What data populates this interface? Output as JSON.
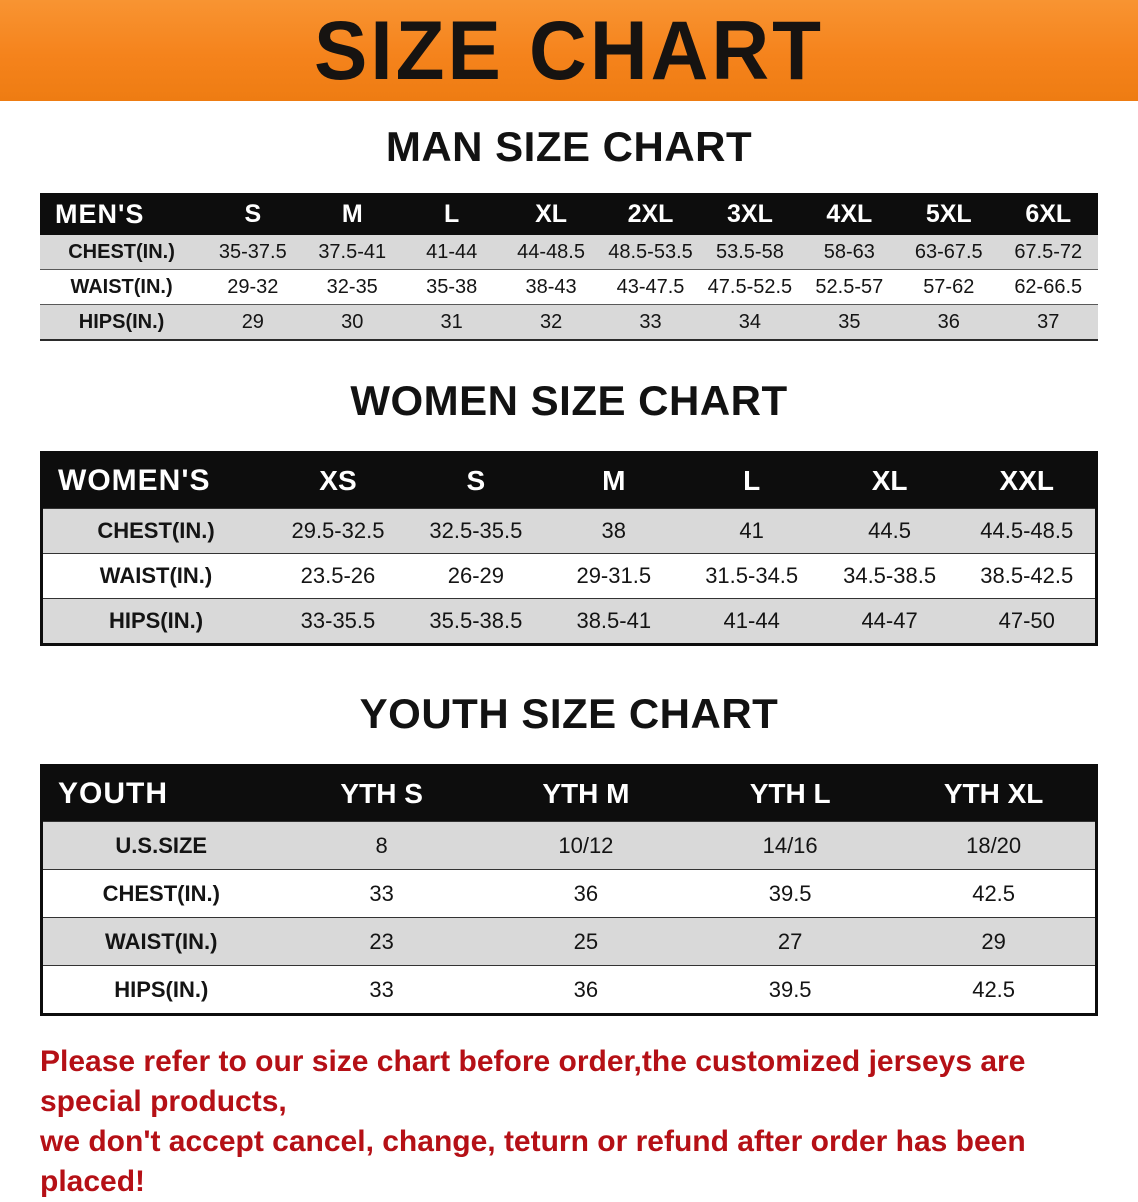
{
  "banner": {
    "title": "SIZE CHART"
  },
  "men": {
    "heading": "MAN SIZE CHART",
    "table": {
      "header": [
        "MEN'S",
        "S",
        "M",
        "L",
        "XL",
        "2XL",
        "3XL",
        "4XL",
        "5XL",
        "6XL"
      ],
      "rows": [
        [
          "CHEST(IN.)",
          "35-37.5",
          "37.5-41",
          "41-44",
          "44-48.5",
          "48.5-53.5",
          "53.5-58",
          "58-63",
          "63-67.5",
          "67.5-72"
        ],
        [
          "WAIST(IN.)",
          "29-32",
          "32-35",
          "35-38",
          "38-43",
          "43-47.5",
          "47.5-52.5",
          "52.5-57",
          "57-62",
          "62-66.5"
        ],
        [
          "HIPS(IN.)",
          "29",
          "30",
          "31",
          "32",
          "33",
          "34",
          "35",
          "36",
          "37"
        ]
      ]
    }
  },
  "women": {
    "heading": "WOMEN SIZE CHART",
    "table": {
      "header": [
        "WOMEN'S",
        "XS",
        "S",
        "M",
        "L",
        "XL",
        "XXL"
      ],
      "rows": [
        [
          "CHEST(IN.)",
          "29.5-32.5",
          "32.5-35.5",
          "38",
          "41",
          "44.5",
          "44.5-48.5"
        ],
        [
          "WAIST(IN.)",
          "23.5-26",
          "26-29",
          "29-31.5",
          "31.5-34.5",
          "34.5-38.5",
          "38.5-42.5"
        ],
        [
          "HIPS(IN.)",
          "33-35.5",
          "35.5-38.5",
          "38.5-41",
          "41-44",
          "44-47",
          "47-50"
        ]
      ]
    }
  },
  "youth": {
    "heading": "YOUTH SIZE CHART",
    "table": {
      "header": [
        "YOUTH",
        "YTH S",
        "YTH M",
        "YTH L",
        "YTH XL"
      ],
      "rows": [
        [
          "U.S.SIZE",
          "8",
          "10/12",
          "14/16",
          "18/20"
        ],
        [
          "CHEST(IN.)",
          "33",
          "36",
          "39.5",
          "42.5"
        ],
        [
          "WAIST(IN.)",
          "23",
          "25",
          "27",
          "29"
        ],
        [
          "HIPS(IN.)",
          "33",
          "36",
          "39.5",
          "42.5"
        ]
      ]
    }
  },
  "footer": {
    "line1": "Please refer to our size chart before order,the customized jerseys are special products,",
    "line2": "we don't accept cancel, change, teturn or refund after order has been placed!"
  },
  "colors": {
    "banner_orange": "#f5831c",
    "header_black": "#0d0d0d",
    "row_gray": "#d9d9d9",
    "row_white": "#ffffff",
    "footer_red": "#b51016"
  }
}
